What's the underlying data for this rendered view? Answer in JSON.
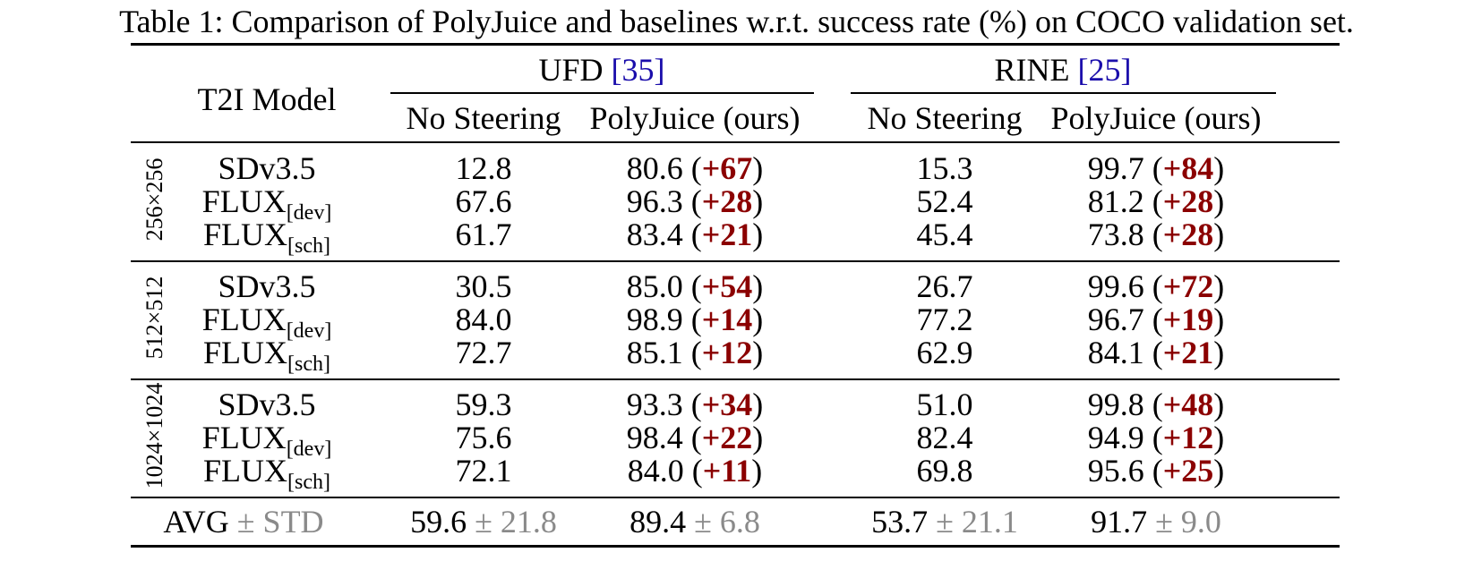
{
  "caption": {
    "prefix": "Table 1: Comparison of PolyJuice and baselines w.r.t. success rate (%) on COCO validation set."
  },
  "header": {
    "model_col": "T2I Model",
    "groups": [
      {
        "name": "UFD",
        "cite": "[35]"
      },
      {
        "name": "RINE",
        "cite": "[25]"
      }
    ],
    "sub_cols": [
      "No Steering",
      "PolyJuice (ours)",
      "No Steering",
      "PolyJuice (ours)"
    ]
  },
  "blocks": [
    {
      "resolution": "256×256",
      "rows": [
        {
          "base": "SDv3.5",
          "sub": "",
          "ufd_ns": "12.8",
          "ufd_pj": "80.6",
          "ufd_gain": "+67",
          "rine_ns": "15.3",
          "rine_pj": "99.7",
          "rine_gain": "+84"
        },
        {
          "base": "FLUX",
          "sub": "[dev]",
          "ufd_ns": "67.6",
          "ufd_pj": "96.3",
          "ufd_gain": "+28",
          "rine_ns": "52.4",
          "rine_pj": "81.2",
          "rine_gain": "+28"
        },
        {
          "base": "FLUX",
          "sub": "[sch]",
          "ufd_ns": "61.7",
          "ufd_pj": "83.4",
          "ufd_gain": "+21",
          "rine_ns": "45.4",
          "rine_pj": "73.8",
          "rine_gain": "+28"
        }
      ]
    },
    {
      "resolution": "512×512",
      "rows": [
        {
          "base": "SDv3.5",
          "sub": "",
          "ufd_ns": "30.5",
          "ufd_pj": "85.0",
          "ufd_gain": "+54",
          "rine_ns": "26.7",
          "rine_pj": "99.6",
          "rine_gain": "+72"
        },
        {
          "base": "FLUX",
          "sub": "[dev]",
          "ufd_ns": "84.0",
          "ufd_pj": "98.9",
          "ufd_gain": "+14",
          "rine_ns": "77.2",
          "rine_pj": "96.7",
          "rine_gain": "+19"
        },
        {
          "base": "FLUX",
          "sub": "[sch]",
          "ufd_ns": "72.7",
          "ufd_pj": "85.1",
          "ufd_gain": "+12",
          "rine_ns": "62.9",
          "rine_pj": "84.1",
          "rine_gain": "+21"
        }
      ]
    },
    {
      "resolution": "1024×1024",
      "rows": [
        {
          "base": "SDv3.5",
          "sub": "",
          "ufd_ns": "59.3",
          "ufd_pj": "93.3",
          "ufd_gain": "+34",
          "rine_ns": "51.0",
          "rine_pj": "99.8",
          "rine_gain": "+48"
        },
        {
          "base": "FLUX",
          "sub": "[dev]",
          "ufd_ns": "75.6",
          "ufd_pj": "98.4",
          "ufd_gain": "+22",
          "rine_ns": "82.4",
          "rine_pj": "94.9",
          "rine_gain": "+12"
        },
        {
          "base": "FLUX",
          "sub": "[sch]",
          "ufd_ns": "72.1",
          "ufd_pj": "84.0",
          "ufd_gain": "+11",
          "rine_ns": "69.8",
          "rine_pj": "95.6",
          "rine_gain": "+25"
        }
      ]
    }
  ],
  "avg_row": {
    "label": "AVG",
    "label_std": "± STD",
    "values": [
      {
        "mean": "59.6",
        "std": "± 21.8"
      },
      {
        "mean": "89.4",
        "std": "± 6.8"
      },
      {
        "mean": "53.7",
        "std": "± 21.1"
      },
      {
        "mean": "91.7",
        "std": "± 9.0"
      }
    ]
  },
  "colors": {
    "gain": "#8b0000",
    "std": "#8a8a8a",
    "cite": "#1a0dab"
  }
}
